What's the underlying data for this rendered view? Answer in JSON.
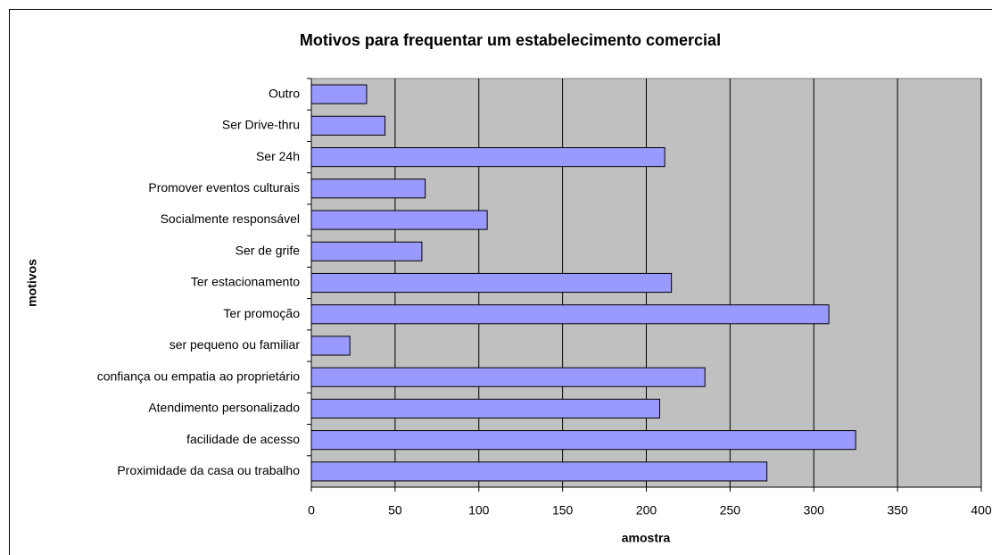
{
  "chart_data": {
    "type": "bar",
    "orientation": "horizontal",
    "title": "Motivos para frequentar um estabelecimento comercial",
    "x_label": "amostra",
    "y_label": "motivos",
    "categories": [
      "Outro",
      "Ser Drive-thru",
      "Ser 24h",
      "Promover eventos culturais",
      "Socialmente responsável",
      "Ser de grife",
      "Ter estacionamento",
      "Ter promoção",
      "ser pequeno ou familiar",
      "confiança ou empatia ao proprietário",
      "Atendimento personalizado",
      "facilidade de acesso",
      "Proximidade da casa ou trabalho"
    ],
    "values": [
      33,
      44,
      211,
      68,
      105,
      66,
      215,
      309,
      23,
      235,
      208,
      325,
      272
    ],
    "color": "#9999ff",
    "xlim": [
      0,
      400
    ],
    "xticks": [
      0,
      50,
      100,
      150,
      200,
      250,
      300,
      350,
      400
    ],
    "grid": true
  }
}
